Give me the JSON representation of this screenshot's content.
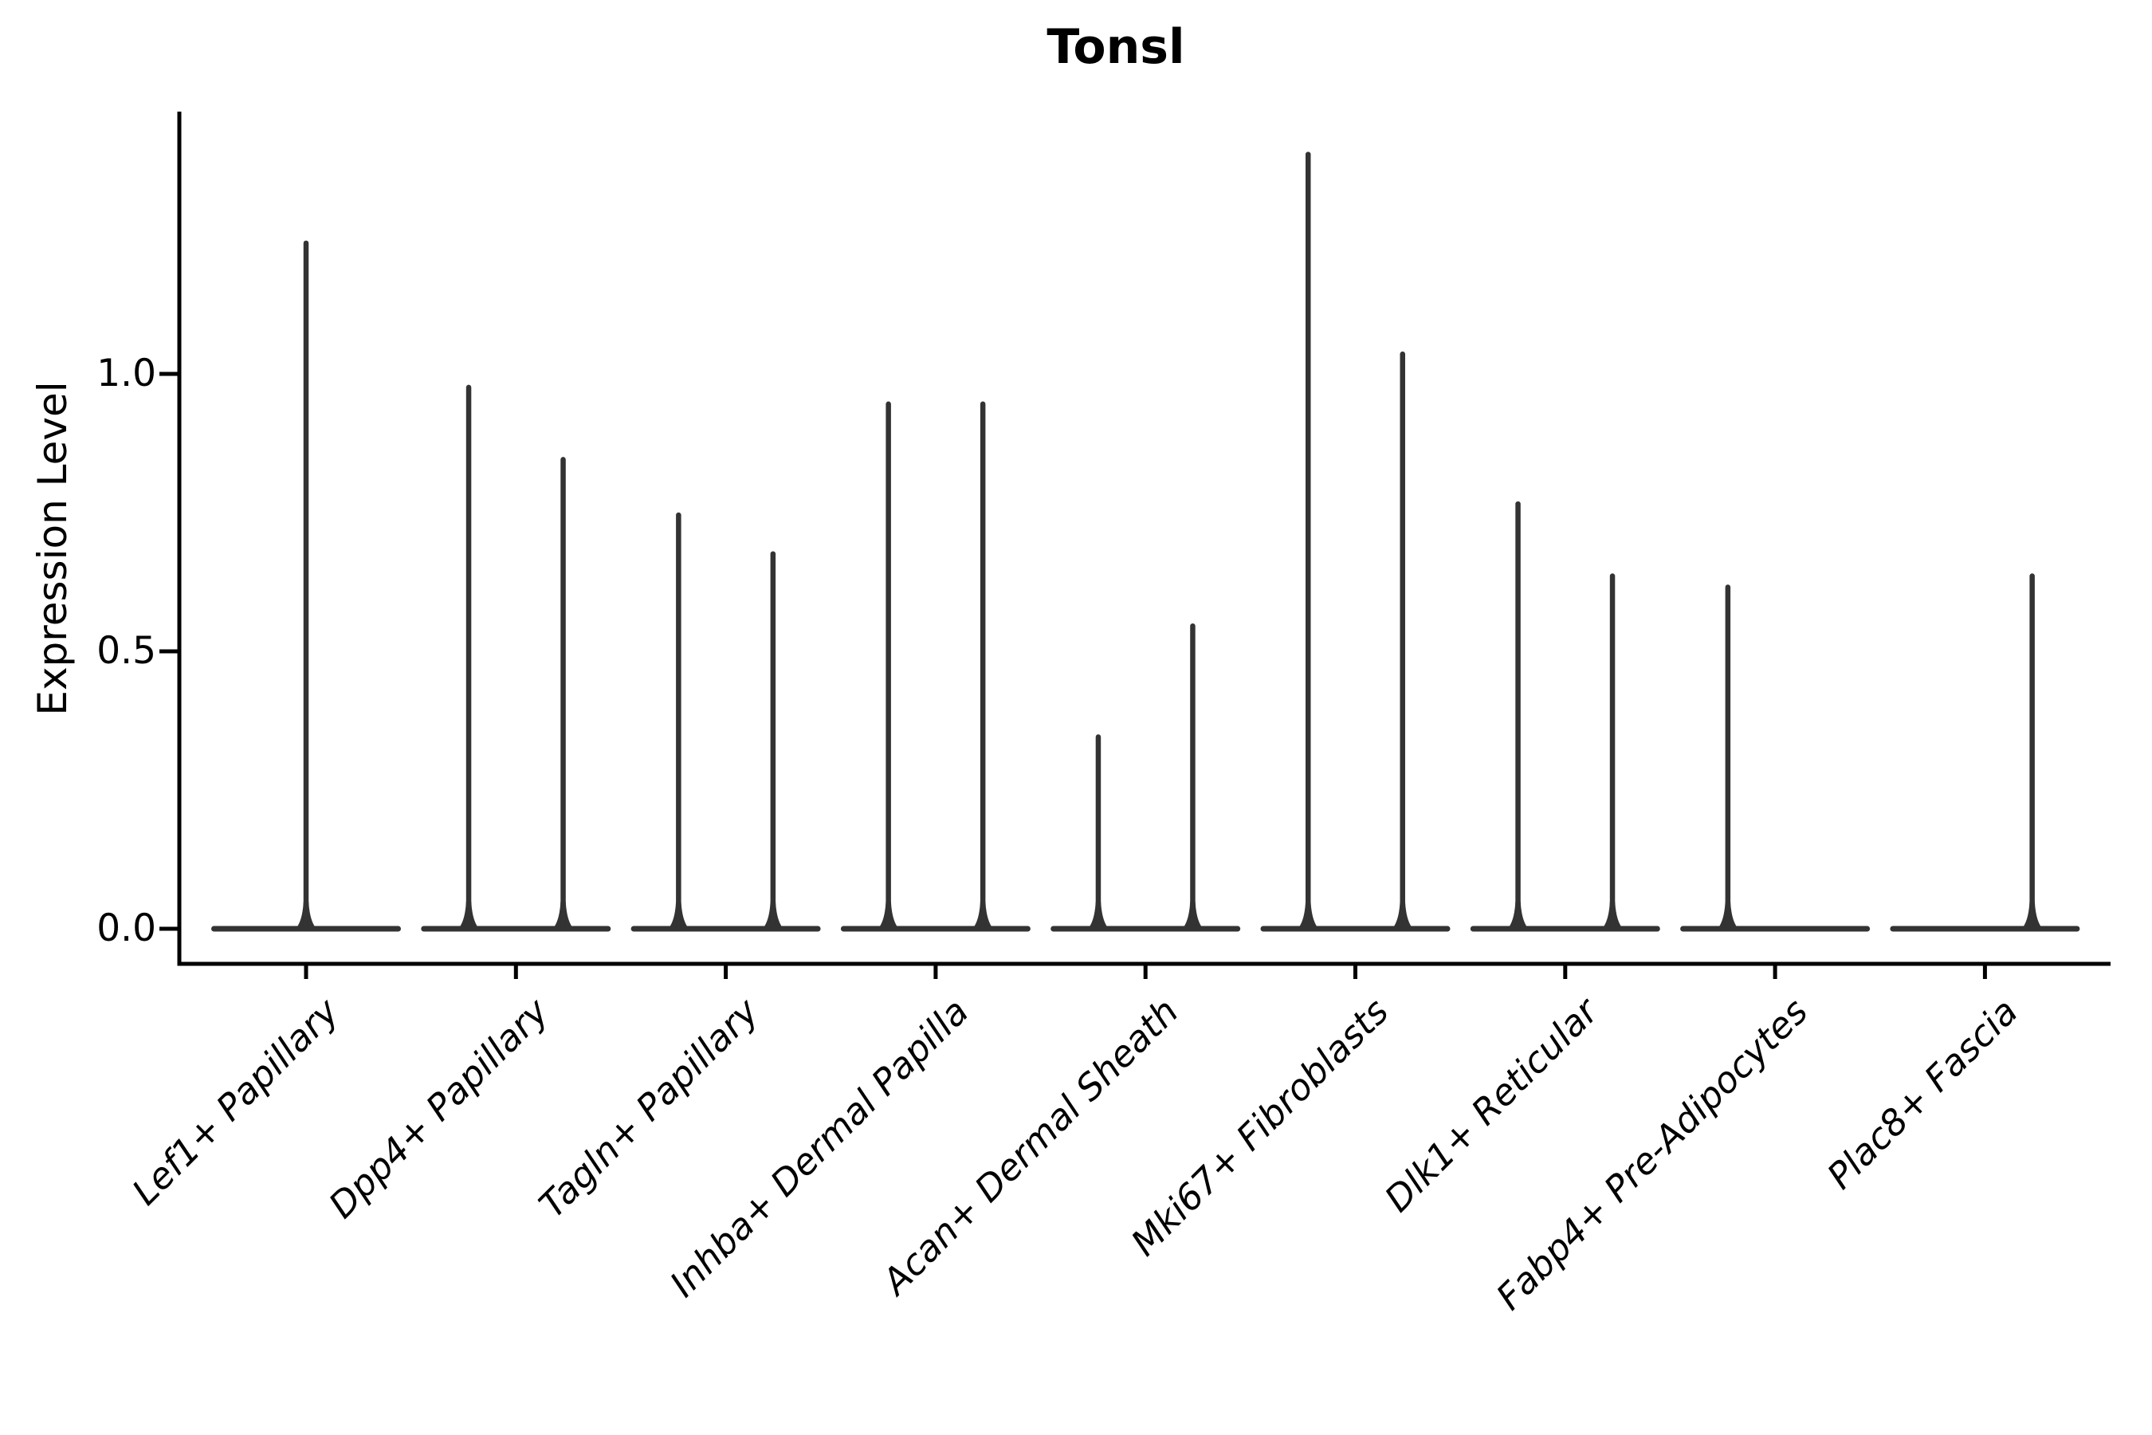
{
  "figure": {
    "title": "Tonsl",
    "y_axis": {
      "label": "Expression Level",
      "tick_labels": [
        "0.0",
        "0.5",
        "1.0"
      ]
    }
  },
  "colors": {
    "violin_stroke": "#333333",
    "axis": "#000000",
    "text": "#000000",
    "background": "#ffffff"
  },
  "chart_data": {
    "type": "violin",
    "title": "Tonsl",
    "xlabel": "",
    "ylabel": "Expression Level",
    "grid": false,
    "legend": "none",
    "ylim": [
      -0.06,
      1.47
    ],
    "yticks": [
      0.0,
      0.5,
      1.0
    ],
    "ytick_labels": [
      "0.0",
      "0.5",
      "1.0"
    ],
    "baseline_value": 0.0,
    "categories": [
      "Lef1+ Papillary",
      "Dpp4+ Papillary",
      "Tagln+ Papillary",
      "Inhba+ Dermal Papilla",
      "Acan+ Dermal Sheath",
      "Mki67+ Fibroblasts",
      "Dlk1+ Reticular",
      "Fabp4+ Pre-Adipocytes",
      "Plac8+ Fascia"
    ],
    "series": [
      {
        "category": "Lef1+ Papillary",
        "violins": [
          {
            "slot": "center",
            "max": 1.24
          }
        ]
      },
      {
        "category": "Dpp4+ Papillary",
        "violins": [
          {
            "slot": "left",
            "max": 0.98
          },
          {
            "slot": "right",
            "max": 0.85
          }
        ]
      },
      {
        "category": "Tagln+ Papillary",
        "violins": [
          {
            "slot": "left",
            "max": 0.75
          },
          {
            "slot": "right",
            "max": 0.68
          }
        ]
      },
      {
        "category": "Inhba+ Dermal Papilla",
        "violins": [
          {
            "slot": "left",
            "max": 0.95
          },
          {
            "slot": "right",
            "max": 0.95
          }
        ]
      },
      {
        "category": "Acan+ Dermal Sheath",
        "violins": [
          {
            "slot": "left",
            "max": 0.35
          },
          {
            "slot": "right",
            "max": 0.55
          }
        ]
      },
      {
        "category": "Mki67+ Fibroblasts",
        "violins": [
          {
            "slot": "left",
            "max": 1.4
          },
          {
            "slot": "right",
            "max": 1.04
          }
        ]
      },
      {
        "category": "Dlk1+ Reticular",
        "violins": [
          {
            "slot": "left",
            "max": 0.77
          },
          {
            "slot": "right",
            "max": 0.64
          }
        ]
      },
      {
        "category": "Fabp4+ Pre-Adipocytes",
        "violins": [
          {
            "slot": "left",
            "max": 0.62
          },
          {
            "slot": "right",
            "max": 0.0
          }
        ]
      },
      {
        "category": "Plac8+ Fascia",
        "violins": [
          {
            "slot": "left",
            "max": 0.0
          },
          {
            "slot": "right",
            "max": 0.64
          }
        ]
      }
    ]
  }
}
